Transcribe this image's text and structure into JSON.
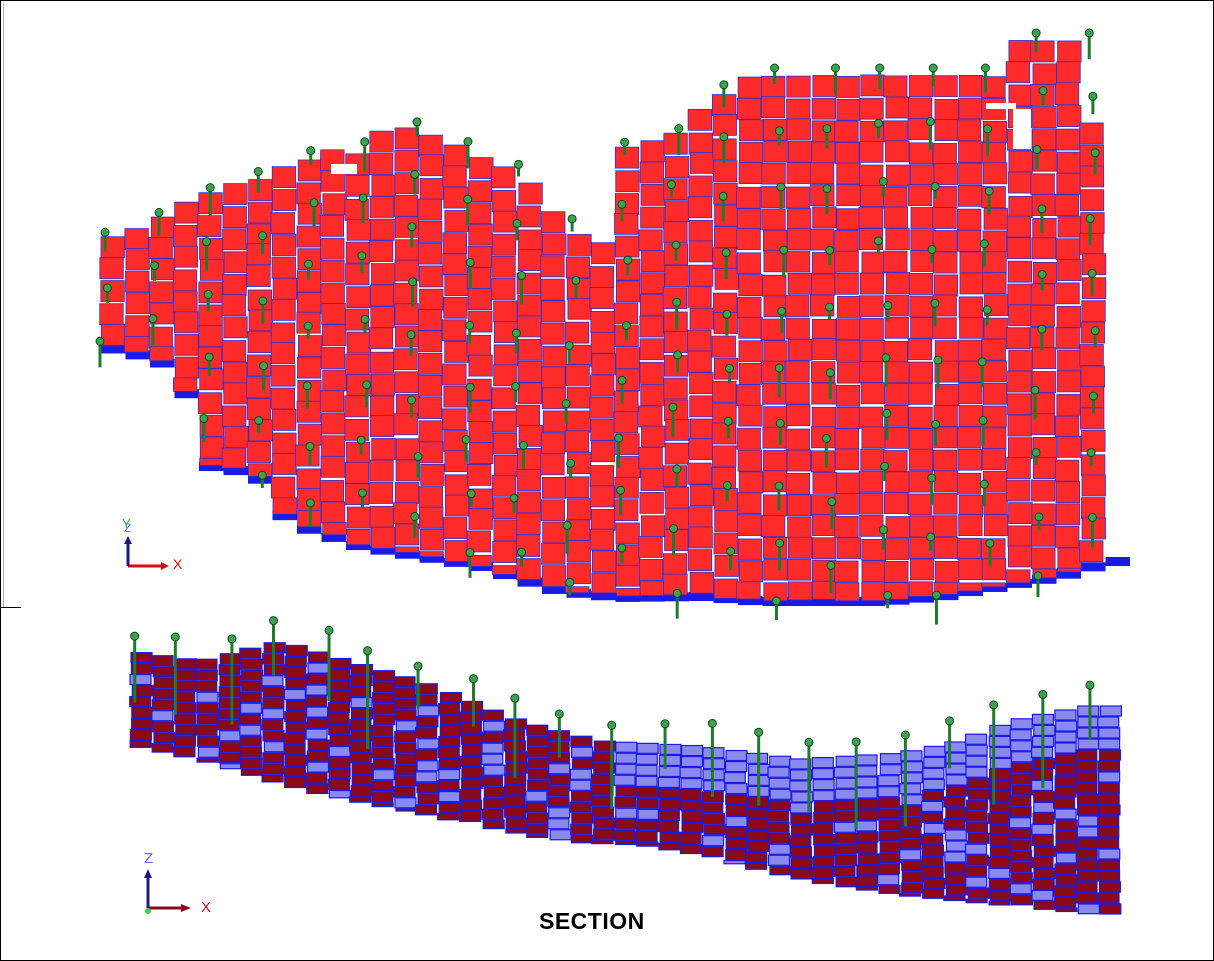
{
  "plan_view": {
    "triad": {
      "vertical_axis_label": "Y",
      "depth_axis_label": "Z",
      "horizontal_axis_label": "X"
    }
  },
  "section_view": {
    "label": "SECTION",
    "triad": {
      "vertical_axis_label": "Z",
      "horizontal_axis_label": "X"
    }
  },
  "colors": {
    "block_fill": "#ff2a2a",
    "block_edge": "#3030d0",
    "block_side": "#1a1ae6",
    "section_fill": "#8a0a1a",
    "section_light": "#8a8aee",
    "drillhole": "#1f7a2f",
    "triad_x": "#cc1111",
    "triad_y": "#1a1a80",
    "triad_z": "#6a6aff",
    "triad_z_plan": "#44aa44"
  }
}
